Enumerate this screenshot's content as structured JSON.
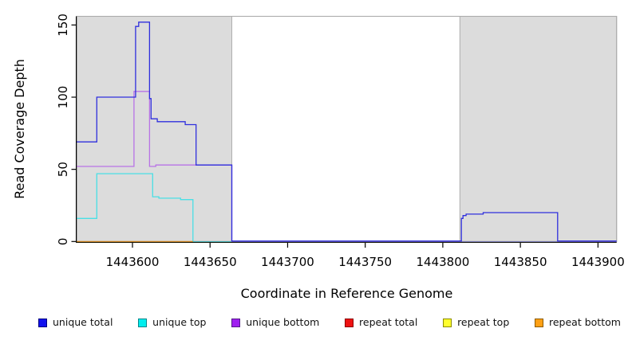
{
  "figure": {
    "x_axis_title": "Coordinate in Reference Genome",
    "y_axis_title": "Read Coverage Depth"
  },
  "chart_data": {
    "type": "line",
    "subtype": "step-after-coverage-plot",
    "title": "",
    "xlabel": "Coordinate in Reference Genome",
    "ylabel": "Read Coverage Depth",
    "x_range": [
      1443564,
      1443912
    ],
    "y_range": [
      0,
      156
    ],
    "x_ticks": [
      1443600,
      1443650,
      1443700,
      1443750,
      1443800,
      1443850,
      1443900
    ],
    "y_ticks": [
      0,
      50,
      100,
      150
    ],
    "grid": false,
    "background_color": "#ffffff",
    "shade_color": "#dcdcdc",
    "shade_border_color": "#acacac",
    "shaded_regions": [
      {
        "name": "left-repeat-region",
        "from": 1443564,
        "to": 1443664
      },
      {
        "name": "right-repeat-region",
        "from": 1443811,
        "to": 1443912
      }
    ],
    "series": [
      {
        "key": "repeat_total",
        "name": "repeat total",
        "color": "#dd2222",
        "end": 1443912,
        "points": [
          [
            1443564,
            0
          ]
        ]
      },
      {
        "key": "repeat_top",
        "name": "repeat top",
        "color": "#f2ee7c",
        "end": 1443912,
        "points": [
          [
            1443564,
            0
          ]
        ]
      },
      {
        "key": "unique_top",
        "name": "unique top",
        "color": "#49dfe5",
        "end": 1443912,
        "points": [
          [
            1443564,
            16
          ],
          [
            1443577,
            47
          ],
          [
            1443613,
            31
          ],
          [
            1443617,
            30
          ],
          [
            1443631,
            29
          ],
          [
            1443639,
            0
          ]
        ]
      },
      {
        "key": "unique_bottom",
        "name": "unique bottom",
        "color": "#b873e6",
        "end": 1443912,
        "points": [
          [
            1443564,
            52
          ],
          [
            1443601,
            104
          ],
          [
            1443611,
            52
          ],
          [
            1443615,
            53
          ],
          [
            1443664,
            0
          ]
        ]
      },
      {
        "key": "unique_total",
        "name": "unique total",
        "color": "#2f2fdd",
        "end": 1443912,
        "points": [
          [
            1443564,
            69
          ],
          [
            1443577,
            100
          ],
          [
            1443602,
            149
          ],
          [
            1443604,
            152
          ],
          [
            1443611,
            99
          ],
          [
            1443612,
            85
          ],
          [
            1443616,
            83
          ],
          [
            1443634,
            81
          ],
          [
            1443641,
            53
          ],
          [
            1443664,
            0
          ],
          [
            1443812,
            16
          ],
          [
            1443813,
            18
          ],
          [
            1443815,
            19
          ],
          [
            1443826,
            20
          ],
          [
            1443874,
            0
          ]
        ]
      },
      {
        "key": "repeat_bottom",
        "name": "repeat bottom",
        "color": "#ffa020",
        "end": 1443639,
        "points": [
          [
            1443564,
            0
          ]
        ]
      }
    ],
    "legend_position": "bottom",
    "legend": [
      {
        "key": "unique_total",
        "label": "unique total",
        "fill": "#1212ee",
        "border": "#000080"
      },
      {
        "key": "unique_top",
        "label": "unique top",
        "fill": "#00eeee",
        "border": "#00868b"
      },
      {
        "key": "unique_bottom",
        "label": "unique bottom",
        "fill": "#a020f0",
        "border": "#551a8b"
      },
      {
        "key": "repeat_total",
        "label": "repeat total",
        "fill": "#ee1111",
        "border": "#8b0000"
      },
      {
        "key": "repeat_top",
        "label": "repeat top",
        "fill": "#ffff2e",
        "border": "#8b8b00"
      },
      {
        "key": "repeat_bottom",
        "label": "repeat bottom",
        "fill": "#ffa014",
        "border": "#8b5a00"
      }
    ]
  }
}
